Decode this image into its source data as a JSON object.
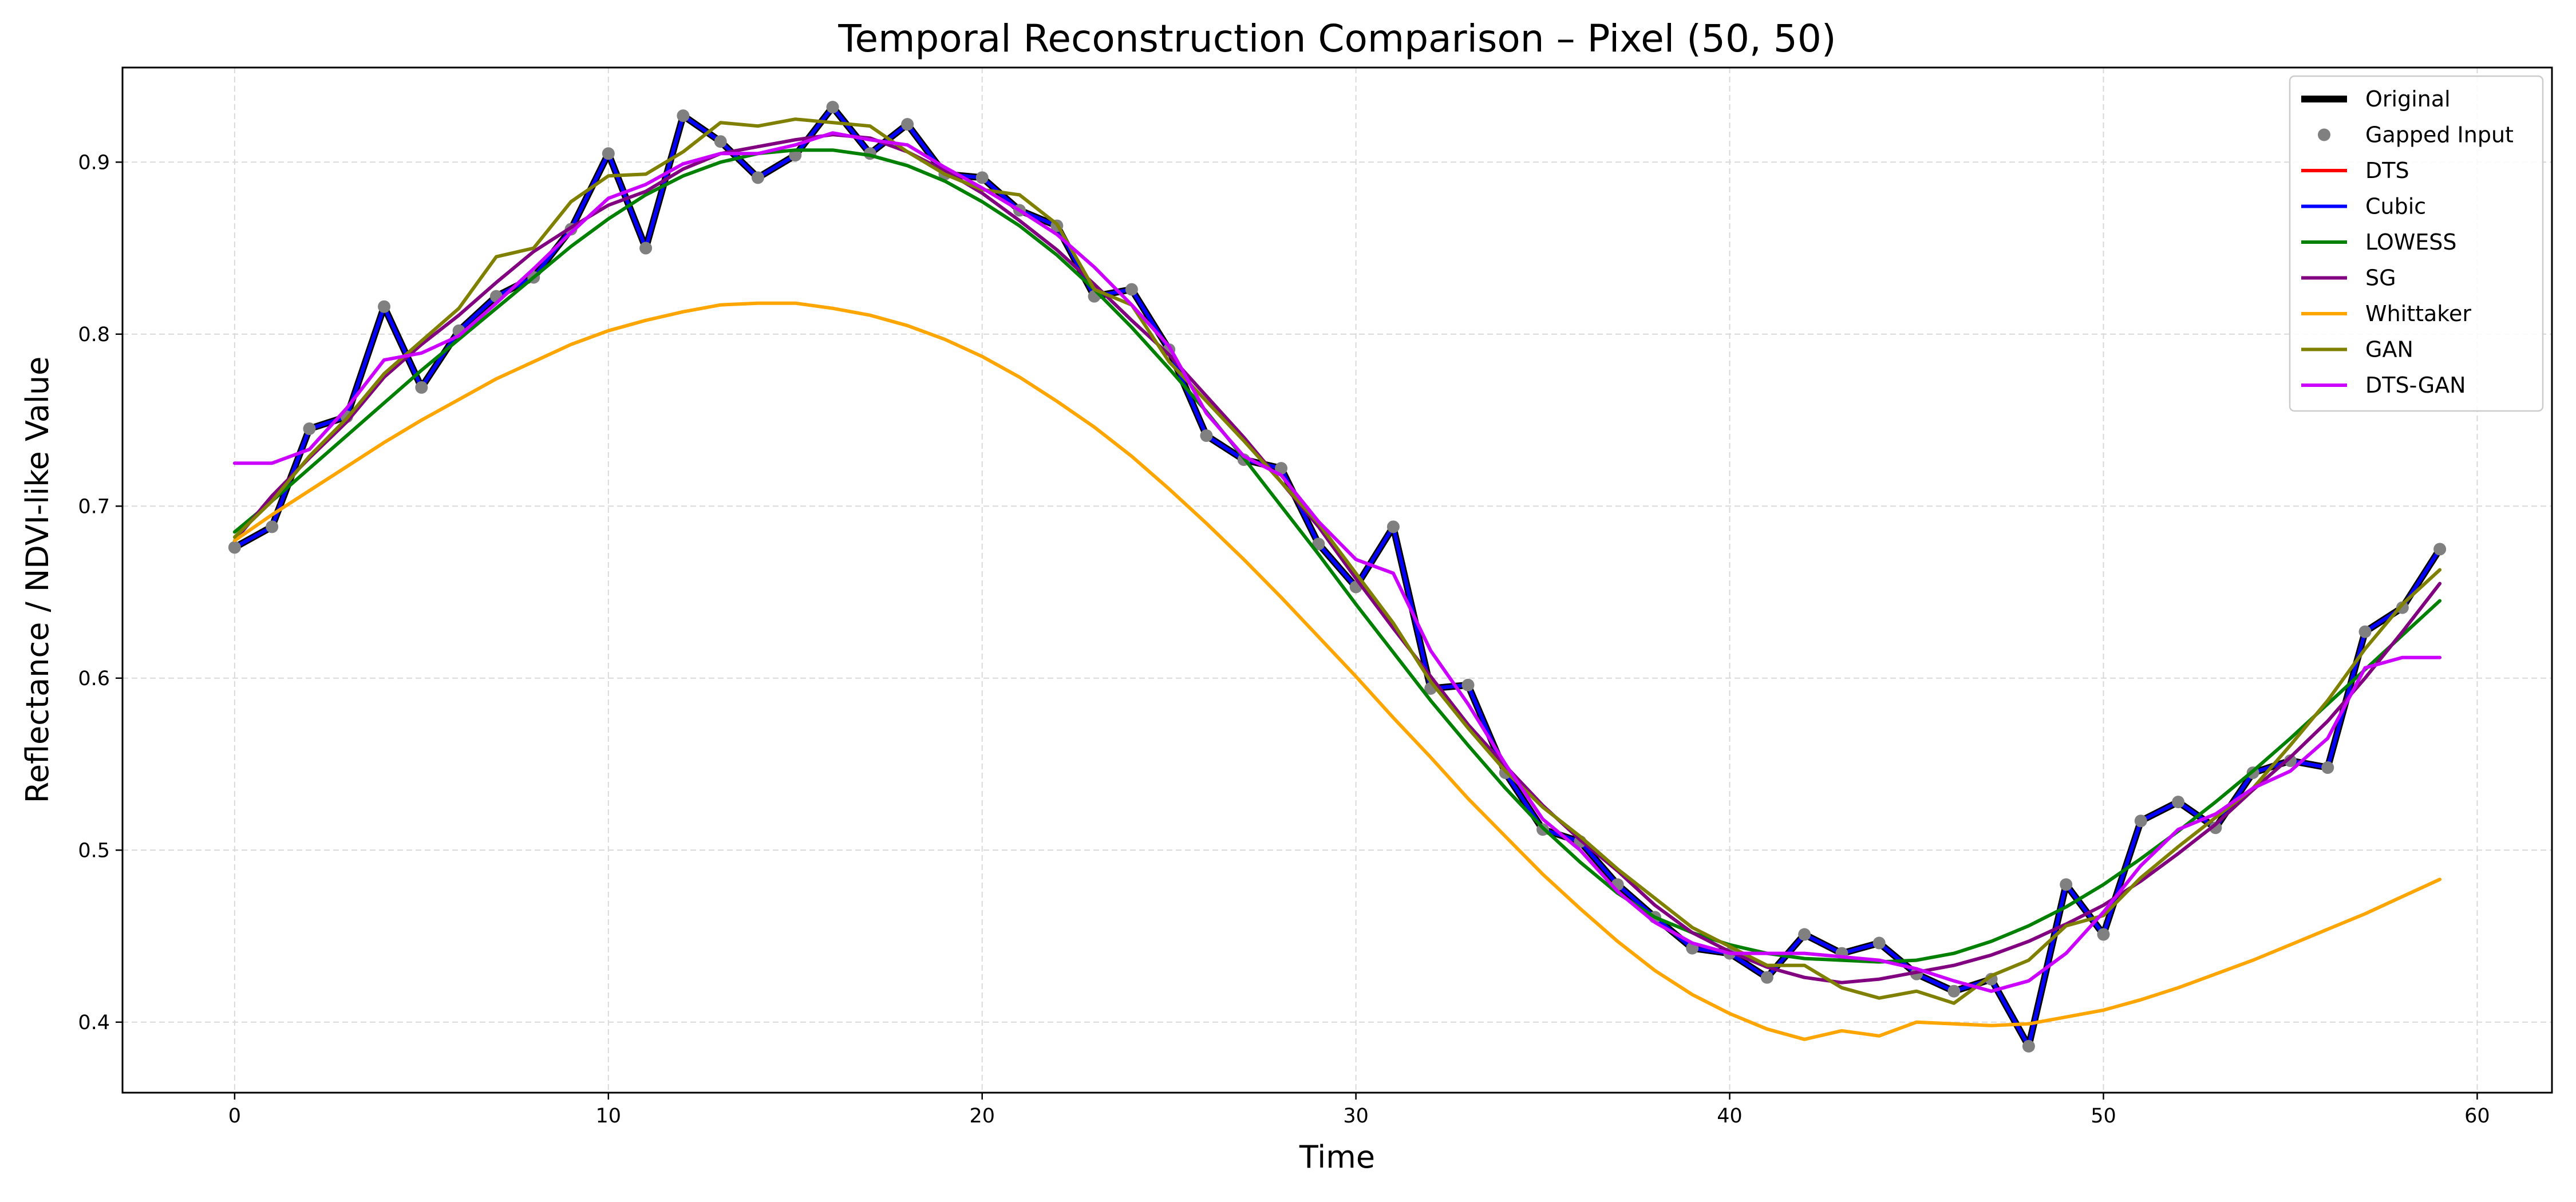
{
  "chart_data": {
    "type": "line",
    "title": "Temporal Reconstruction Comparison – Pixel (50, 50)",
    "xlabel": "Time",
    "ylabel": "Reflectance / NDVI-like Value",
    "xlim": [
      -3,
      62
    ],
    "ylim": [
      0.359,
      0.955
    ],
    "xticks": [
      0,
      10,
      20,
      30,
      40,
      50,
      60
    ],
    "yticks": [
      0.4,
      0.5,
      0.6,
      0.7,
      0.8,
      0.9
    ],
    "grid": true,
    "legend_position": "top-right",
    "x": [
      0,
      1,
      2,
      3,
      4,
      5,
      6,
      7,
      8,
      9,
      10,
      11,
      12,
      13,
      14,
      15,
      16,
      17,
      18,
      19,
      20,
      21,
      22,
      23,
      24,
      25,
      26,
      27,
      28,
      29,
      30,
      31,
      32,
      33,
      34,
      35,
      36,
      37,
      38,
      39,
      40,
      41,
      42,
      43,
      44,
      45,
      46,
      47,
      48,
      49,
      50,
      51,
      52,
      53,
      54,
      55,
      56,
      57,
      58,
      59
    ],
    "series": [
      {
        "name": "Original",
        "kind": "line",
        "color": "#000000",
        "values": [
          0.676,
          0.688,
          0.745,
          0.752,
          0.816,
          0.769,
          0.802,
          0.822,
          0.833,
          0.861,
          0.905,
          0.85,
          0.927,
          0.912,
          0.891,
          0.904,
          0.932,
          0.905,
          0.922,
          0.893,
          0.891,
          0.872,
          0.863,
          0.822,
          0.826,
          0.791,
          0.741,
          0.727,
          0.722,
          0.678,
          0.653,
          0.688,
          0.594,
          0.596,
          0.545,
          0.512,
          0.505,
          0.48,
          0.461,
          0.443,
          0.44,
          0.426,
          0.451,
          0.44,
          0.446,
          0.428,
          0.418,
          0.425,
          0.386,
          0.48,
          0.451,
          0.517,
          0.528,
          0.513,
          0.545,
          0.552,
          0.548,
          0.627,
          0.641,
          0.675
        ]
      },
      {
        "name": "Gapped Input",
        "kind": "scatter",
        "color": "#808080",
        "values": [
          0.676,
          0.688,
          0.745,
          0.752,
          0.816,
          0.769,
          0.802,
          0.822,
          0.833,
          0.861,
          0.905,
          0.85,
          0.927,
          0.912,
          0.891,
          0.904,
          0.932,
          0.905,
          0.922,
          0.893,
          0.891,
          0.872,
          0.863,
          0.822,
          0.826,
          0.791,
          0.741,
          0.727,
          0.722,
          0.678,
          0.653,
          0.688,
          0.594,
          0.596,
          0.545,
          0.512,
          0.505,
          0.48,
          0.461,
          0.443,
          0.44,
          0.426,
          0.451,
          0.44,
          0.446,
          0.428,
          0.418,
          0.425,
          0.386,
          0.48,
          0.451,
          0.517,
          0.528,
          0.513,
          0.545,
          0.552,
          0.548,
          0.627,
          0.641,
          0.675
        ]
      },
      {
        "name": "DTS",
        "kind": "line",
        "color": "#ff0000",
        "values": [
          0.676,
          0.688,
          0.745,
          0.752,
          0.816,
          0.769,
          0.802,
          0.822,
          0.833,
          0.861,
          0.905,
          0.85,
          0.927,
          0.912,
          0.891,
          0.904,
          0.932,
          0.905,
          0.922,
          0.893,
          0.891,
          0.872,
          0.863,
          0.822,
          0.826,
          0.791,
          0.741,
          0.727,
          0.722,
          0.678,
          0.653,
          0.688,
          0.594,
          0.596,
          0.545,
          0.512,
          0.505,
          0.48,
          0.461,
          0.443,
          0.44,
          0.426,
          0.451,
          0.44,
          0.446,
          0.428,
          0.418,
          0.425,
          0.386,
          0.48,
          0.451,
          0.517,
          0.528,
          0.513,
          0.545,
          0.552,
          0.548,
          0.627,
          0.641,
          0.675
        ]
      },
      {
        "name": "Cubic",
        "kind": "line",
        "color": "#0000ff",
        "values": [
          0.676,
          0.688,
          0.745,
          0.752,
          0.816,
          0.769,
          0.802,
          0.822,
          0.833,
          0.861,
          0.905,
          0.85,
          0.927,
          0.912,
          0.891,
          0.904,
          0.932,
          0.905,
          0.922,
          0.893,
          0.891,
          0.872,
          0.863,
          0.822,
          0.826,
          0.791,
          0.741,
          0.727,
          0.722,
          0.678,
          0.653,
          0.688,
          0.594,
          0.596,
          0.545,
          0.512,
          0.505,
          0.48,
          0.461,
          0.443,
          0.44,
          0.426,
          0.451,
          0.44,
          0.446,
          0.428,
          0.418,
          0.425,
          0.386,
          0.48,
          0.451,
          0.517,
          0.528,
          0.513,
          0.545,
          0.552,
          0.548,
          0.627,
          0.641,
          0.675
        ]
      },
      {
        "name": "LOWESS",
        "kind": "line",
        "color": "#008000",
        "values": [
          0.685,
          0.703,
          0.722,
          0.741,
          0.76,
          0.779,
          0.797,
          0.815,
          0.833,
          0.851,
          0.867,
          0.881,
          0.892,
          0.9,
          0.905,
          0.907,
          0.907,
          0.904,
          0.898,
          0.889,
          0.877,
          0.863,
          0.846,
          0.826,
          0.804,
          0.78,
          0.755,
          0.728,
          0.7,
          0.672,
          0.643,
          0.615,
          0.587,
          0.561,
          0.536,
          0.513,
          0.493,
          0.475,
          0.461,
          0.452,
          0.445,
          0.44,
          0.437,
          0.436,
          0.435,
          0.436,
          0.44,
          0.447,
          0.456,
          0.467,
          0.48,
          0.495,
          0.511,
          0.528,
          0.546,
          0.565,
          0.585,
          0.605,
          0.625,
          0.645
        ]
      },
      {
        "name": "SG",
        "kind": "line",
        "color": "#800080",
        "values": [
          0.68,
          0.706,
          0.728,
          0.749,
          0.775,
          0.794,
          0.811,
          0.83,
          0.848,
          0.862,
          0.875,
          0.883,
          0.896,
          0.905,
          0.909,
          0.913,
          0.916,
          0.914,
          0.906,
          0.895,
          0.882,
          0.866,
          0.849,
          0.829,
          0.808,
          0.788,
          0.764,
          0.74,
          0.714,
          0.688,
          0.658,
          0.629,
          0.601,
          0.573,
          0.549,
          0.526,
          0.506,
          0.488,
          0.468,
          0.452,
          0.441,
          0.432,
          0.426,
          0.423,
          0.425,
          0.429,
          0.433,
          0.439,
          0.447,
          0.457,
          0.468,
          0.482,
          0.498,
          0.515,
          0.535,
          0.554,
          0.575,
          0.6,
          0.627,
          0.655
        ]
      },
      {
        "name": "Whittaker",
        "kind": "line",
        "color": "#ffa500",
        "values": [
          0.68,
          0.695,
          0.709,
          0.723,
          0.737,
          0.75,
          0.762,
          0.774,
          0.784,
          0.794,
          0.802,
          0.808,
          0.813,
          0.817,
          0.818,
          0.818,
          0.815,
          0.811,
          0.805,
          0.797,
          0.787,
          0.775,
          0.761,
          0.746,
          0.729,
          0.71,
          0.69,
          0.669,
          0.647,
          0.624,
          0.601,
          0.577,
          0.554,
          0.53,
          0.508,
          0.486,
          0.466,
          0.447,
          0.43,
          0.416,
          0.405,
          0.396,
          0.39,
          0.395,
          0.392,
          0.4,
          0.399,
          0.398,
          0.399,
          0.403,
          0.407,
          0.413,
          0.42,
          0.428,
          0.436,
          0.445,
          0.454,
          0.463,
          0.473,
          0.483
        ]
      },
      {
        "name": "GAN",
        "kind": "line",
        "color": "#808000",
        "values": [
          0.682,
          0.703,
          0.729,
          0.751,
          0.777,
          0.796,
          0.815,
          0.845,
          0.85,
          0.877,
          0.892,
          0.893,
          0.906,
          0.923,
          0.921,
          0.925,
          0.923,
          0.921,
          0.906,
          0.893,
          0.884,
          0.881,
          0.864,
          0.826,
          0.817,
          0.784,
          0.761,
          0.738,
          0.714,
          0.69,
          0.661,
          0.632,
          0.598,
          0.571,
          0.546,
          0.525,
          0.508,
          0.489,
          0.472,
          0.455,
          0.444,
          0.433,
          0.433,
          0.42,
          0.414,
          0.418,
          0.411,
          0.427,
          0.436,
          0.456,
          0.462,
          0.484,
          0.502,
          0.519,
          0.536,
          0.561,
          0.587,
          0.617,
          0.643,
          0.663
        ]
      },
      {
        "name": "DTS-GAN",
        "kind": "line",
        "color": "#cc00ff",
        "values": [
          0.725,
          0.725,
          0.733,
          0.757,
          0.785,
          0.789,
          0.799,
          0.818,
          0.838,
          0.859,
          0.879,
          0.887,
          0.899,
          0.905,
          0.905,
          0.91,
          0.917,
          0.913,
          0.91,
          0.897,
          0.885,
          0.872,
          0.858,
          0.839,
          0.817,
          0.793,
          0.754,
          0.729,
          0.718,
          0.691,
          0.669,
          0.661,
          0.616,
          0.585,
          0.55,
          0.518,
          0.5,
          0.476,
          0.458,
          0.446,
          0.44,
          0.44,
          0.44,
          0.438,
          0.436,
          0.431,
          0.424,
          0.418,
          0.424,
          0.44,
          0.464,
          0.491,
          0.512,
          0.521,
          0.536,
          0.546,
          0.565,
          0.606,
          0.612,
          0.612
        ]
      }
    ]
  }
}
